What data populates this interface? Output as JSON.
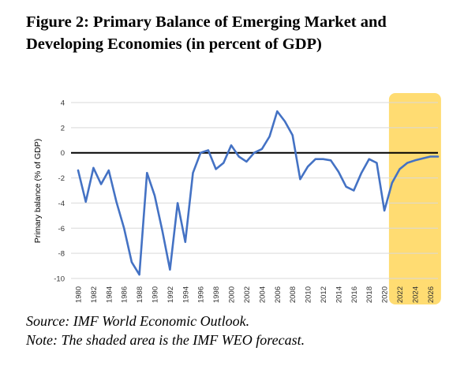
{
  "figure": {
    "title_line1": "Figure 2: Primary Balance of Emerging Market and",
    "title_line2": "Developing Economies (in percent of GDP)",
    "source_line": "Source: IMF World Economic Outlook.",
    "note_line": "Note: The shaded area is the IMF WEO forecast."
  },
  "chart_data": {
    "type": "line",
    "ylabel": "Primary balance (% of GDP)",
    "ylim": [
      -10,
      4
    ],
    "yticks": [
      -10,
      -8,
      -6,
      -4,
      -2,
      0,
      2,
      4
    ],
    "xlim": [
      1980,
      2027
    ],
    "xticks": [
      1980,
      1982,
      1984,
      1986,
      1988,
      1990,
      1992,
      1994,
      1996,
      1998,
      2000,
      2002,
      2004,
      2006,
      2008,
      2010,
      2012,
      2014,
      2016,
      2018,
      2020,
      2022,
      2024,
      2026
    ],
    "grid": true,
    "zero_line": true,
    "shaded_forecast": {
      "from": 2020.6,
      "to": 2027.4,
      "color": "#ffd966"
    },
    "line_color": "#4472c4",
    "series": [
      {
        "name": "",
        "x": [
          1980,
          1981,
          1982,
          1983,
          1984,
          1985,
          1986,
          1987,
          1988,
          1989,
          1990,
          1991,
          1992,
          1993,
          1994,
          1995,
          1996,
          1997,
          1998,
          1999,
          2000,
          2001,
          2002,
          2003,
          2004,
          2005,
          2006,
          2007,
          2008,
          2009,
          2010,
          2011,
          2012,
          2013,
          2014,
          2015,
          2016,
          2017,
          2018,
          2019,
          2020,
          2021,
          2022,
          2023,
          2024,
          2025,
          2026,
          2027
        ],
        "values": [
          -1.4,
          -3.9,
          -1.2,
          -2.5,
          -1.4,
          -3.9,
          -6.0,
          -8.7,
          -9.7,
          -1.6,
          -3.4,
          -6.2,
          -9.3,
          -4.0,
          -7.1,
          -1.6,
          0.0,
          0.2,
          -1.3,
          -0.8,
          0.6,
          -0.3,
          -0.7,
          0.0,
          0.3,
          1.3,
          3.3,
          2.5,
          1.4,
          -2.1,
          -1.1,
          -0.5,
          -0.5,
          -0.6,
          -1.5,
          -2.7,
          -3.0,
          -1.6,
          -0.5,
          -0.8,
          -4.6,
          -2.4,
          -1.3,
          -0.8,
          -0.6,
          -0.45,
          -0.3,
          -0.3
        ]
      }
    ]
  }
}
